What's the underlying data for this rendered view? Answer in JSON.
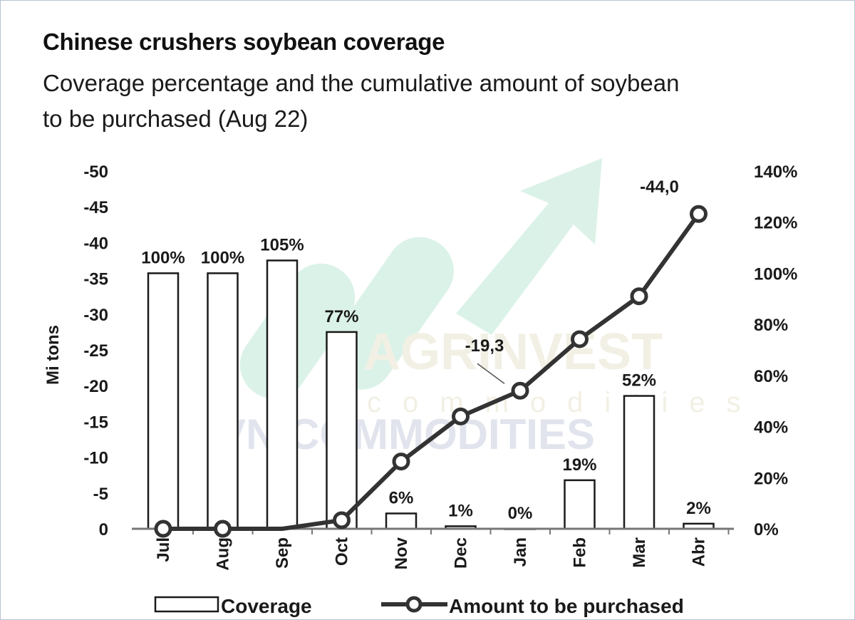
{
  "title": "Chinese crushers soybean coverage",
  "subtitle": "Coverage percentage and the cumulative amount of soybean to be purchased (Aug 22)",
  "watermark": {
    "brand": "AGRINVEST",
    "sub": "commodities",
    "overlay": "VN COMMODITIES"
  },
  "colors": {
    "ink": "#1a1a1a",
    "bar_fill": "#ffffff",
    "line": "#333333",
    "watermark_green": "#bfe8d6"
  },
  "chart_data": {
    "type": "bar+line",
    "categories": [
      "Jul",
      "Aug",
      "Sep",
      "Oct",
      "Nov",
      "Dec",
      "Jan",
      "Feb",
      "Mar",
      "Abr"
    ],
    "series": [
      {
        "name": "Coverage",
        "type": "bar",
        "axis": "right",
        "values": [
          100,
          100,
          105,
          77,
          6,
          1,
          0,
          19,
          52,
          2
        ],
        "labels": [
          "100%",
          "100%",
          "105%",
          "77%",
          "6%",
          "1%",
          "0%",
          "19%",
          "52%",
          "2%"
        ]
      },
      {
        "name": "Amount to be purchased",
        "type": "line",
        "axis": "left",
        "values": [
          0,
          0,
          0,
          -1.2,
          -9.4,
          -15.7,
          -19.3,
          -26.5,
          -32.5,
          -44.0
        ]
      }
    ],
    "line_annotations": [
      {
        "category": "Jan",
        "text": "-19,3"
      },
      {
        "category": "Abr",
        "text": "-44,0"
      }
    ],
    "left_axis": {
      "label": "Mi tons",
      "range": [
        0,
        -50
      ],
      "ticks": [
        "-50",
        "-45",
        "-40",
        "-35",
        "-30",
        "-25",
        "-20",
        "-15",
        "-10",
        "-5",
        "0"
      ]
    },
    "right_axis": {
      "range": [
        0,
        140
      ],
      "ticks": [
        "140%",
        "120%",
        "100%",
        "80%",
        "60%",
        "40%",
        "20%",
        "0%"
      ]
    },
    "legend": {
      "position": "bottom",
      "items": [
        "Coverage",
        "Amount to be purchased"
      ]
    }
  }
}
